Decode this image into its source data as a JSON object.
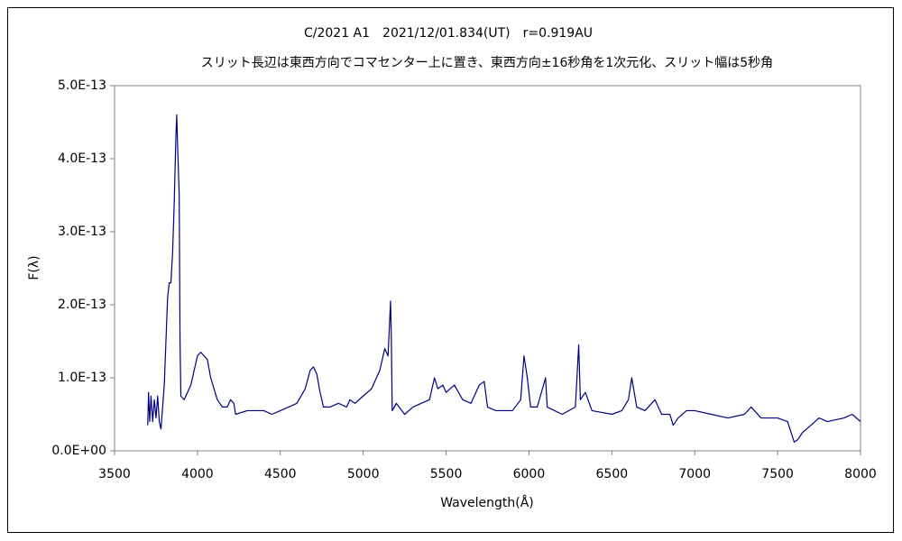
{
  "chart_data": {
    "type": "line",
    "title": "C/2021 A1　2021/12/01.834(UT)　r=0.919AU",
    "subtitle": "スリット長辺は東西方向でコマセンター上に置き、東西方向±16秒角を1次元化、スリット幅は5秒角",
    "x_label": "Wavelength(Å)",
    "y_label": "F(λ)",
    "xlim": [
      3500,
      8000
    ],
    "xticks": [
      3500,
      4000,
      4500,
      5000,
      5500,
      6000,
      6500,
      7000,
      7500,
      8000
    ],
    "ylim": [
      0,
      5e-13
    ],
    "yticks": [
      {
        "value": 0,
        "label": "0.0E+00"
      },
      {
        "value": 1e-13,
        "label": "1.0E-13"
      },
      {
        "value": 2e-13,
        "label": "2.0E-13"
      },
      {
        "value": 3e-13,
        "label": "3.0E-13"
      },
      {
        "value": 4e-13,
        "label": "4.0E-13"
      },
      {
        "value": 5e-13,
        "label": "5.0E-13"
      }
    ],
    "grid": false,
    "x": [
      3700,
      3705,
      3712,
      3720,
      3730,
      3740,
      3750,
      3760,
      3770,
      3780,
      3790,
      3800,
      3810,
      3820,
      3830,
      3840,
      3850,
      3860,
      3870,
      3875,
      3880,
      3890,
      3895,
      3900,
      3920,
      3940,
      3960,
      3980,
      4000,
      4020,
      4040,
      4060,
      4080,
      4100,
      4120,
      4150,
      4180,
      4200,
      4220,
      4230,
      4300,
      4400,
      4450,
      4500,
      4550,
      4600,
      4650,
      4680,
      4700,
      4720,
      4740,
      4760,
      4800,
      4850,
      4900,
      4920,
      4950,
      5000,
      5050,
      5100,
      5130,
      5150,
      5165,
      5170,
      5175,
      5200,
      5250,
      5300,
      5350,
      5400,
      5430,
      5450,
      5480,
      5500,
      5550,
      5600,
      5650,
      5700,
      5730,
      5750,
      5800,
      5900,
      5950,
      5970,
      5990,
      6010,
      6050,
      6100,
      6110,
      6200,
      6280,
      6300,
      6310,
      6340,
      6380,
      6500,
      6560,
      6600,
      6620,
      6650,
      6700,
      6760,
      6800,
      6850,
      6870,
      6900,
      6950,
      7000,
      7100,
      7200,
      7300,
      7340,
      7400,
      7500,
      7560,
      7600,
      7620,
      7650,
      7700,
      7750,
      7800,
      7900,
      7950,
      8000
    ],
    "series": [
      {
        "name": "F(λ)",
        "color": "#000080",
        "values": [
          3.5e-14,
          8e-14,
          4e-14,
          7.5e-14,
          4e-14,
          7e-14,
          4.5e-14,
          7.5e-14,
          4e-14,
          3e-14,
          6e-14,
          9e-14,
          1.5e-13,
          2.1e-13,
          2.3e-13,
          2.3e-13,
          2.7e-13,
          3.4e-13,
          4.3e-13,
          4.6e-13,
          4.2e-13,
          3.5e-13,
          1.5e-13,
          7.5e-14,
          7e-14,
          8e-14,
          9e-14,
          1.1e-13,
          1.3e-13,
          1.35e-13,
          1.3e-13,
          1.25e-13,
          1e-13,
          8.5e-14,
          7e-14,
          6e-14,
          6e-14,
          7e-14,
          6.5e-14,
          5e-14,
          5.5e-14,
          5.5e-14,
          5e-14,
          5.5e-14,
          6e-14,
          6.5e-14,
          8.5e-14,
          1.1e-13,
          1.15e-13,
          1.05e-13,
          8e-14,
          6e-14,
          6e-14,
          6.5e-14,
          6e-14,
          7e-14,
          6.5e-14,
          7.5e-14,
          8.5e-14,
          1.1e-13,
          1.4e-13,
          1.3e-13,
          2.05e-13,
          1.5e-13,
          5.5e-14,
          6.5e-14,
          5e-14,
          6e-14,
          6.5e-14,
          7e-14,
          1e-13,
          8.5e-14,
          9e-14,
          8e-14,
          9e-14,
          7e-14,
          6.5e-14,
          9e-14,
          9.5e-14,
          6e-14,
          5.5e-14,
          5.5e-14,
          7e-14,
          1.3e-13,
          1e-13,
          6e-14,
          6e-14,
          1e-13,
          6e-14,
          5e-14,
          6e-14,
          1.45e-13,
          7e-14,
          8e-14,
          5.5e-14,
          5e-14,
          5.5e-14,
          7e-14,
          1e-13,
          6e-14,
          5.5e-14,
          7e-14,
          5e-14,
          5e-14,
          3.5e-14,
          4.5e-14,
          5.5e-14,
          5.5e-14,
          5e-14,
          4.5e-14,
          5e-14,
          6e-14,
          4.5e-14,
          4.5e-14,
          4e-14,
          1.2e-14,
          1.5e-14,
          2.5e-14,
          3.5e-14,
          4.5e-14,
          4e-14,
          4.5e-14,
          5e-14,
          4e-14
        ]
      }
    ]
  }
}
